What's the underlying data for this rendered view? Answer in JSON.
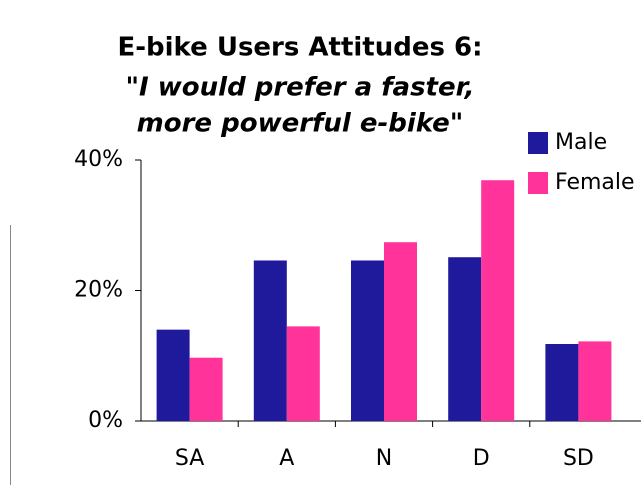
{
  "chart_data": {
    "type": "bar",
    "title": "E-bike Users Attitudes 6:",
    "subtitle": [
      "\"I would prefer a faster,",
      "more powerful e-bike\""
    ],
    "categories": [
      "SA",
      "A",
      "N",
      "D",
      "SD"
    ],
    "series": [
      {
        "name": "Male",
        "color": "#1f1a9c",
        "values": [
          14,
          24.6,
          24.6,
          25.1,
          11.8
        ]
      },
      {
        "name": "Female",
        "color": "#ff3399",
        "values": [
          9.7,
          14.5,
          27.4,
          36.9,
          12.2
        ]
      }
    ],
    "ylim": [
      0,
      40
    ],
    "yticks": [
      {
        "value": 0,
        "label": "0%"
      },
      {
        "value": 20,
        "label": "20%"
      },
      {
        "value": 40,
        "label": "40%"
      }
    ],
    "legend": "top-right"
  }
}
